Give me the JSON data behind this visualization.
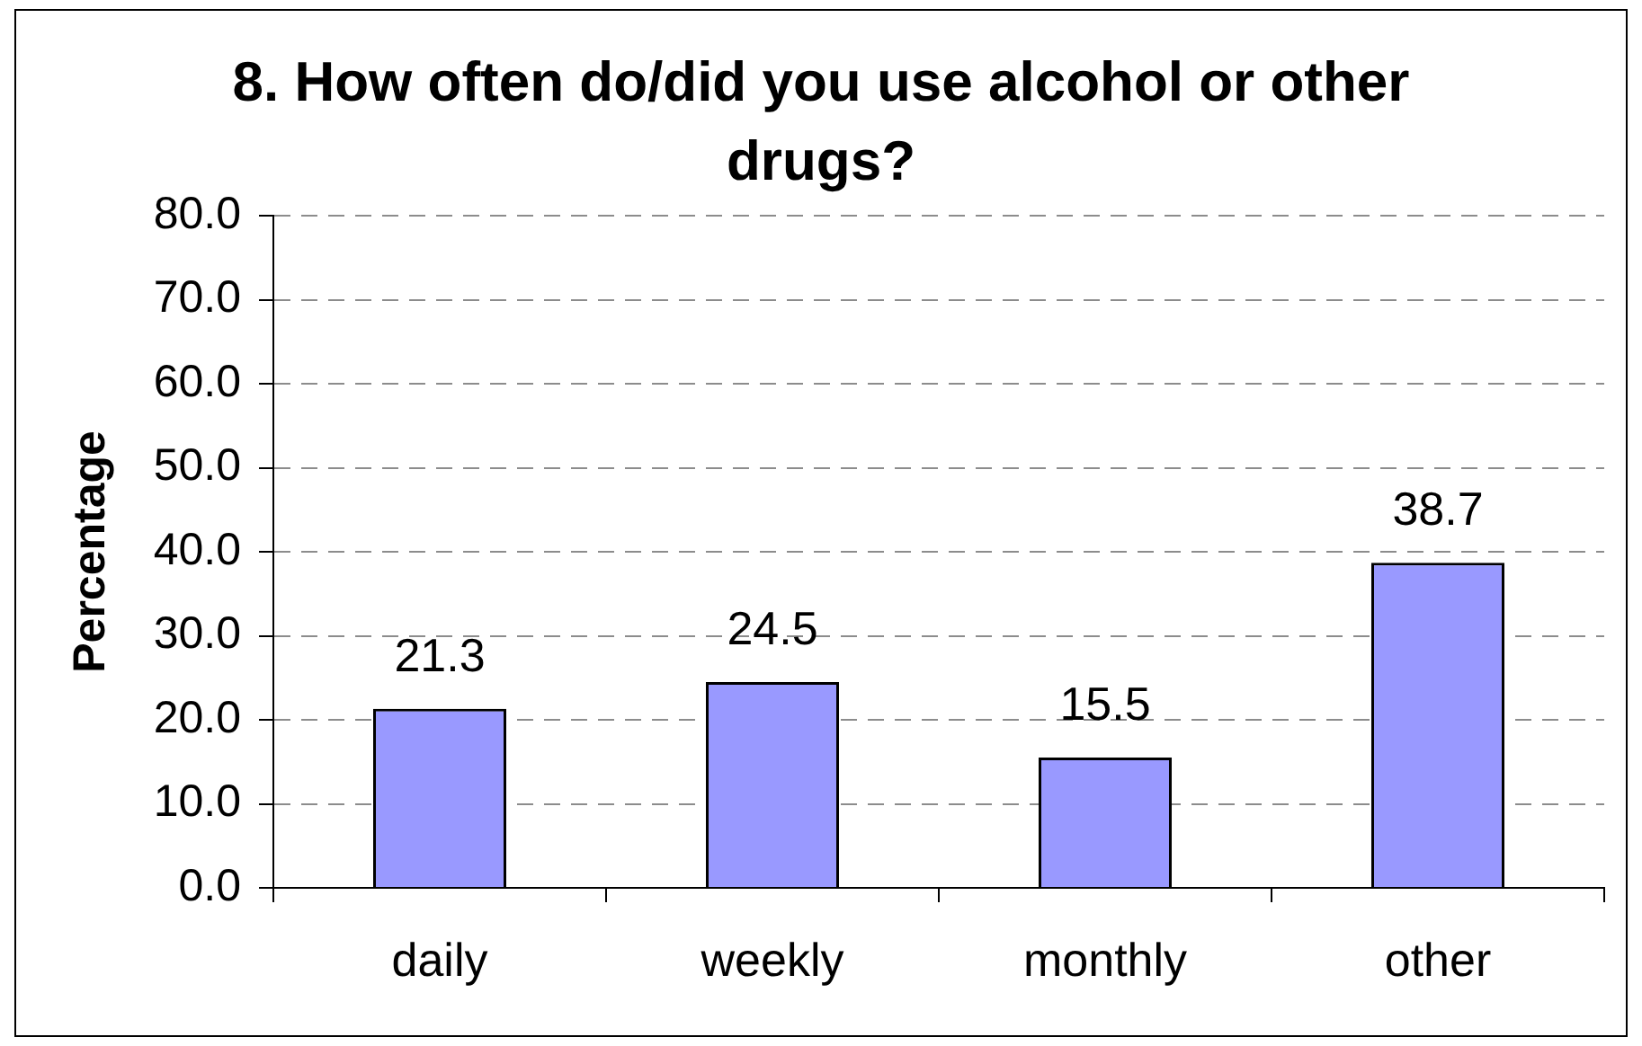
{
  "chart_data": {
    "type": "bar",
    "title": "8. How often do/did you use alcohol or other drugs?",
    "ylabel": "Percentage",
    "categories": [
      "daily",
      "weekly",
      "monthly",
      "other"
    ],
    "values": [
      21.3,
      24.5,
      15.5,
      38.7
    ],
    "color": "#9999ff",
    "ylim": [
      0,
      80
    ],
    "yticks": [
      {
        "value": 0,
        "label": "0.0"
      },
      {
        "value": 10,
        "label": "10.0"
      },
      {
        "value": 20,
        "label": "20.0"
      },
      {
        "value": 30,
        "label": "30.0"
      },
      {
        "value": 40,
        "label": "40.0"
      },
      {
        "value": 50,
        "label": "50.0"
      },
      {
        "value": 60,
        "label": "60.0"
      },
      {
        "value": 70,
        "label": "70.0"
      },
      {
        "value": 80,
        "label": "80.0"
      }
    ],
    "grid": "y",
    "data_labels": true
  }
}
